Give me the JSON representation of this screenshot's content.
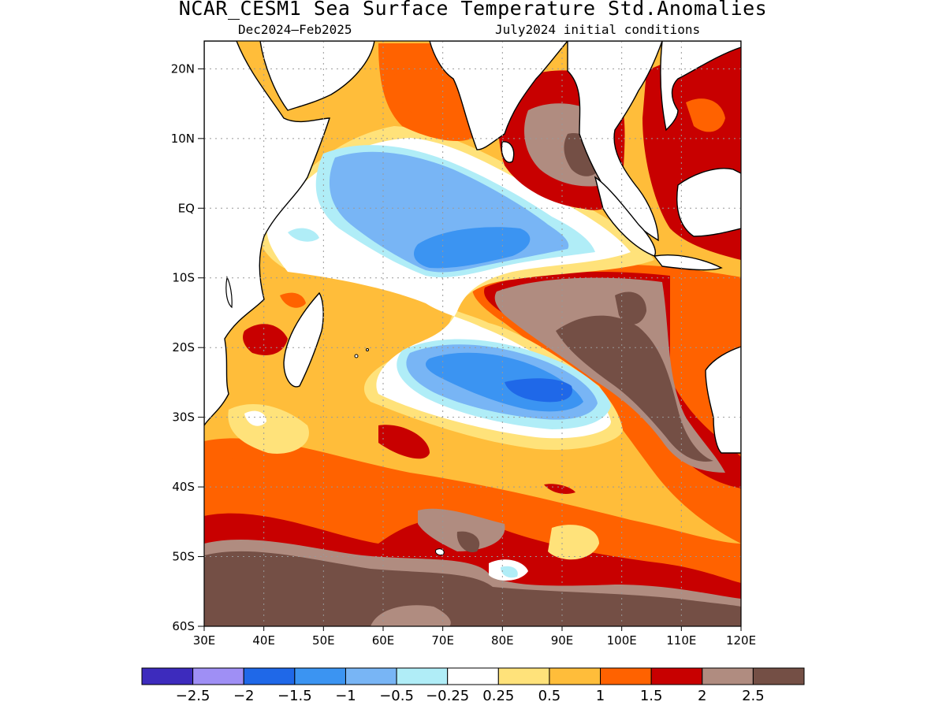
{
  "header": {
    "title": "NCAR_CESM1 Sea Surface Temperature Std.Anomalies",
    "subtitle_left": "Dec2024–Feb2025",
    "subtitle_right": "July2024 initial conditions"
  },
  "map": {
    "variable": "Sea Surface Temperature Std.Anomalies",
    "lat_ticks": [
      "20N",
      "10N",
      "EQ",
      "10S",
      "20S",
      "30S",
      "40S",
      "50S",
      "60S"
    ],
    "lon_ticks": [
      "30E",
      "40E",
      "50E",
      "60E",
      "70E",
      "80E",
      "90E",
      "100E",
      "110E",
      "120E"
    ],
    "lat_range": [
      -60,
      24
    ],
    "lon_range": [
      30,
      120
    ],
    "land_color": "#ffffff",
    "features": [
      {
        "name": "negative anomaly core west",
        "min_value": -1.5,
        "lon": 72,
        "lat": -5
      },
      {
        "name": "negative anomaly core south",
        "min_value": -1.5,
        "lon": 88,
        "lat": -26
      },
      {
        "name": "strong warm tongue",
        "max_value": 2.5,
        "lon": 100,
        "lat": -20
      },
      {
        "name": "southern ocean warm belt",
        "max_value": 2.5,
        "lon": 75,
        "lat": -55
      }
    ]
  },
  "colorbar": {
    "colors": [
      "#3d2bbd",
      "#9f8ff5",
      "#1f68e8",
      "#3b94f2",
      "#78b5f5",
      "#b0edf7",
      "#ffffff",
      "#ffe27a",
      "#ffbd3a",
      "#ff6200",
      "#c80000",
      "#b08c80",
      "#744f45"
    ],
    "labels": [
      "−2.5",
      "−2",
      "−1.5",
      "−1",
      "−0.5",
      "−0.25",
      "0.25",
      "0.5",
      "1",
      "1.5",
      "2",
      "2.5"
    ]
  }
}
